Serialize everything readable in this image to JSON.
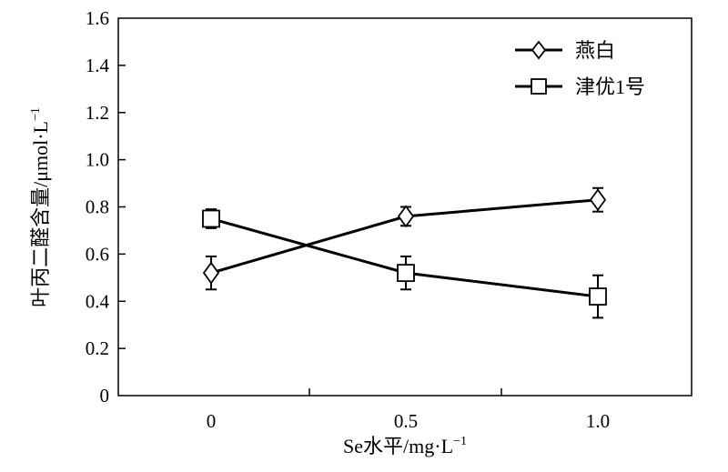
{
  "chart_data": {
    "type": "line",
    "title": "",
    "xlabel": "Se水平/mg·L",
    "xlabel_sup": "−1",
    "ylabel": "叶丙二醛含量/μmol·L",
    "ylabel_sup": "−1",
    "x_ticks": [
      "0",
      "0.5",
      "1.0"
    ],
    "x": [
      0,
      0.5,
      1.0
    ],
    "y_ticks": [
      "0",
      "0.2",
      "0.4",
      "0.6",
      "0.8",
      "1.0",
      "1.2",
      "1.4",
      "1.6"
    ],
    "ylim": [
      0,
      1.6
    ],
    "grid": false,
    "legend_position": "top-right",
    "series": [
      {
        "name": "燕白",
        "marker": "diamond",
        "values": [
          0.52,
          0.76,
          0.83
        ],
        "error": [
          0.07,
          0.04,
          0.05
        ]
      },
      {
        "name": "津优1号",
        "marker": "square",
        "values": [
          0.75,
          0.52,
          0.42
        ],
        "error": [
          0.04,
          0.07,
          0.09
        ]
      }
    ]
  }
}
